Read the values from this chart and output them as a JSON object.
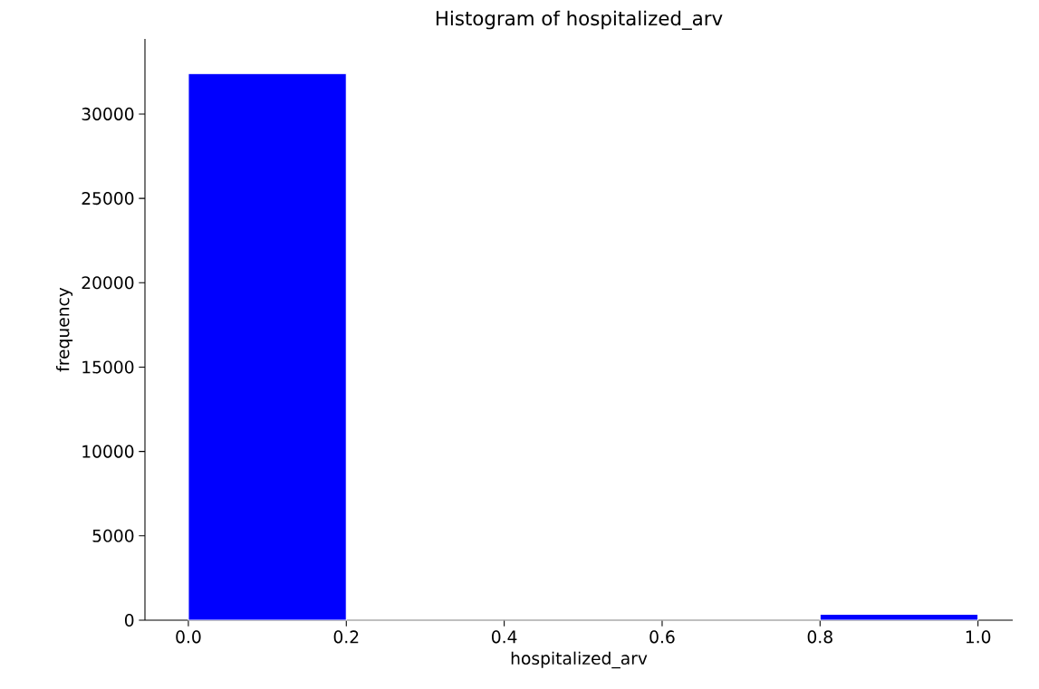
{
  "chart_data": {
    "type": "histogram",
    "title": "Histogram of hospitalized_arv",
    "xlabel": "hospitalized_arv",
    "ylabel": "frequency",
    "bins": [
      0.0,
      0.2,
      0.4,
      0.6,
      0.8,
      1.0
    ],
    "values": [
      32400,
      0,
      0,
      0,
      350
    ],
    "color": "#0000ff",
    "xlim": [
      -0.055,
      1.044
    ],
    "ylim": [
      0,
      34450
    ],
    "xticks": [
      {
        "value": 0,
        "label": "0.0"
      },
      {
        "value": 0.2,
        "label": "0.2"
      },
      {
        "value": 0.4,
        "label": "0.4"
      },
      {
        "value": 0.6,
        "label": "0.6"
      },
      {
        "value": 0.8,
        "label": "0.8"
      },
      {
        "value": 1.0,
        "label": "1.0"
      }
    ],
    "yticks": [
      0,
      5000,
      10000,
      15000,
      20000,
      25000,
      30000
    ],
    "grid": false
  }
}
